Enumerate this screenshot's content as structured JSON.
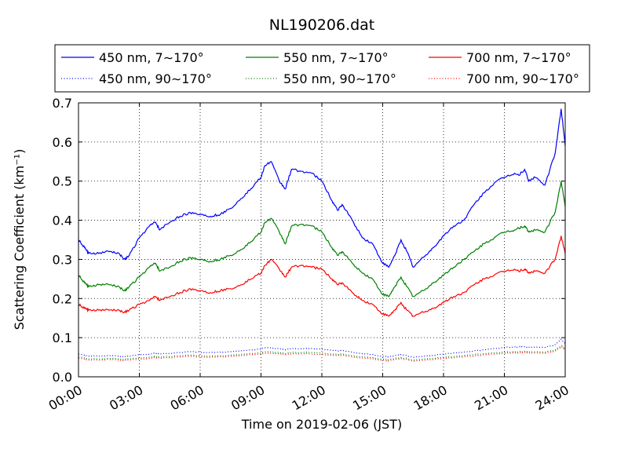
{
  "chart_data": {
    "type": "line",
    "title": "NL190206.dat",
    "xlabel": "Time on 2019-02-06 (JST)",
    "ylabel": "Scattering Coefficient (km⁻¹)",
    "xlim": [
      0,
      24
    ],
    "ylim": [
      0.0,
      0.7
    ],
    "grid": true,
    "legend_position": "top",
    "x_ticks": [
      0,
      3,
      6,
      9,
      12,
      15,
      18,
      21,
      24
    ],
    "x_tick_labels": [
      "00:00",
      "03:00",
      "06:00",
      "09:00",
      "12:00",
      "15:00",
      "18:00",
      "21:00",
      "24:00"
    ],
    "y_ticks": [
      0.0,
      0.1,
      0.2,
      0.3,
      0.4,
      0.5,
      0.6,
      0.7
    ],
    "y_tick_labels": [
      "0.0",
      "0.1",
      "0.2",
      "0.3",
      "0.4",
      "0.5",
      "0.6",
      "0.7"
    ],
    "x_hours": [
      0.0,
      0.3,
      0.5,
      1.0,
      1.5,
      2.0,
      2.3,
      2.5,
      3.0,
      3.5,
      3.8,
      4.0,
      4.5,
      5.0,
      5.5,
      6.0,
      6.5,
      7.0,
      7.5,
      8.0,
      8.5,
      9.0,
      9.2,
      9.5,
      9.9,
      10.2,
      10.5,
      11.0,
      11.5,
      12.0,
      12.5,
      12.8,
      13.0,
      13.5,
      14.0,
      14.5,
      15.0,
      15.3,
      15.6,
      15.9,
      16.2,
      16.5,
      17.0,
      17.5,
      18.0,
      18.5,
      19.0,
      19.5,
      20.0,
      20.5,
      21.0,
      21.5,
      21.7,
      22.0,
      22.2,
      22.5,
      23.0,
      23.5,
      23.8,
      24.0
    ],
    "series": [
      {
        "name": "450 nm, 7∼170°",
        "color": "#0000ff",
        "style": "solid",
        "values": [
          0.35,
          0.33,
          0.315,
          0.315,
          0.32,
          0.315,
          0.3,
          0.31,
          0.355,
          0.385,
          0.395,
          0.375,
          0.395,
          0.41,
          0.42,
          0.415,
          0.41,
          0.415,
          0.43,
          0.455,
          0.48,
          0.51,
          0.54,
          0.55,
          0.5,
          0.48,
          0.53,
          0.525,
          0.52,
          0.5,
          0.45,
          0.425,
          0.44,
          0.4,
          0.355,
          0.34,
          0.29,
          0.28,
          0.31,
          0.35,
          0.32,
          0.28,
          0.305,
          0.33,
          0.36,
          0.385,
          0.4,
          0.44,
          0.47,
          0.495,
          0.51,
          0.52,
          0.515,
          0.53,
          0.5,
          0.51,
          0.49,
          0.57,
          0.685,
          0.59
        ]
      },
      {
        "name": "550 nm, 7∼170°",
        "color": "#008000",
        "style": "solid",
        "values": [
          0.26,
          0.24,
          0.23,
          0.235,
          0.235,
          0.23,
          0.22,
          0.23,
          0.255,
          0.28,
          0.29,
          0.27,
          0.28,
          0.295,
          0.305,
          0.3,
          0.295,
          0.3,
          0.31,
          0.325,
          0.345,
          0.37,
          0.395,
          0.405,
          0.37,
          0.34,
          0.385,
          0.39,
          0.385,
          0.37,
          0.33,
          0.31,
          0.32,
          0.29,
          0.265,
          0.25,
          0.21,
          0.205,
          0.23,
          0.255,
          0.23,
          0.205,
          0.22,
          0.24,
          0.26,
          0.28,
          0.3,
          0.32,
          0.34,
          0.355,
          0.37,
          0.375,
          0.38,
          0.385,
          0.37,
          0.375,
          0.37,
          0.42,
          0.5,
          0.435
        ]
      },
      {
        "name": "700 nm, 7∼170°",
        "color": "#ff0000",
        "style": "solid",
        "values": [
          0.185,
          0.175,
          0.17,
          0.17,
          0.17,
          0.17,
          0.165,
          0.17,
          0.185,
          0.195,
          0.205,
          0.195,
          0.205,
          0.215,
          0.225,
          0.22,
          0.215,
          0.22,
          0.225,
          0.235,
          0.25,
          0.265,
          0.285,
          0.3,
          0.275,
          0.255,
          0.28,
          0.285,
          0.28,
          0.275,
          0.25,
          0.235,
          0.24,
          0.215,
          0.195,
          0.185,
          0.16,
          0.155,
          0.17,
          0.19,
          0.17,
          0.155,
          0.165,
          0.175,
          0.19,
          0.205,
          0.215,
          0.235,
          0.25,
          0.26,
          0.27,
          0.275,
          0.27,
          0.275,
          0.265,
          0.27,
          0.265,
          0.3,
          0.36,
          0.315
        ]
      },
      {
        "name": "450 nm, 90∼170°",
        "color": "#0000ff",
        "style": "dotted",
        "values": [
          0.058,
          0.055,
          0.053,
          0.053,
          0.054,
          0.053,
          0.052,
          0.053,
          0.056,
          0.058,
          0.06,
          0.058,
          0.06,
          0.062,
          0.064,
          0.063,
          0.062,
          0.063,
          0.064,
          0.066,
          0.068,
          0.071,
          0.074,
          0.075,
          0.071,
          0.069,
          0.072,
          0.072,
          0.072,
          0.071,
          0.068,
          0.066,
          0.067,
          0.063,
          0.059,
          0.057,
          0.052,
          0.051,
          0.054,
          0.057,
          0.054,
          0.05,
          0.052,
          0.055,
          0.058,
          0.061,
          0.063,
          0.066,
          0.069,
          0.072,
          0.075,
          0.076,
          0.076,
          0.077,
          0.075,
          0.076,
          0.075,
          0.082,
          0.096,
          0.086
        ]
      },
      {
        "name": "550 nm, 90∼170°",
        "color": "#008000",
        "style": "dotted",
        "values": [
          0.05,
          0.048,
          0.046,
          0.046,
          0.047,
          0.046,
          0.045,
          0.046,
          0.048,
          0.05,
          0.052,
          0.05,
          0.052,
          0.054,
          0.055,
          0.054,
          0.053,
          0.054,
          0.055,
          0.057,
          0.059,
          0.061,
          0.064,
          0.065,
          0.061,
          0.059,
          0.062,
          0.062,
          0.062,
          0.061,
          0.058,
          0.057,
          0.058,
          0.054,
          0.051,
          0.049,
          0.045,
          0.044,
          0.047,
          0.049,
          0.047,
          0.043,
          0.045,
          0.047,
          0.05,
          0.052,
          0.054,
          0.057,
          0.059,
          0.061,
          0.063,
          0.064,
          0.064,
          0.065,
          0.063,
          0.064,
          0.063,
          0.068,
          0.08,
          0.072
        ]
      },
      {
        "name": "700 nm, 90∼170°",
        "color": "#ff0000",
        "style": "dotted",
        "values": [
          0.047,
          0.045,
          0.043,
          0.043,
          0.044,
          0.043,
          0.042,
          0.043,
          0.045,
          0.047,
          0.049,
          0.047,
          0.049,
          0.051,
          0.052,
          0.051,
          0.05,
          0.051,
          0.052,
          0.054,
          0.056,
          0.058,
          0.06,
          0.061,
          0.058,
          0.056,
          0.059,
          0.059,
          0.058,
          0.057,
          0.055,
          0.054,
          0.055,
          0.051,
          0.048,
          0.046,
          0.042,
          0.041,
          0.044,
          0.046,
          0.044,
          0.04,
          0.042,
          0.044,
          0.047,
          0.049,
          0.051,
          0.053,
          0.056,
          0.058,
          0.06,
          0.061,
          0.061,
          0.062,
          0.06,
          0.061,
          0.06,
          0.065,
          0.077,
          0.069
        ]
      }
    ]
  }
}
